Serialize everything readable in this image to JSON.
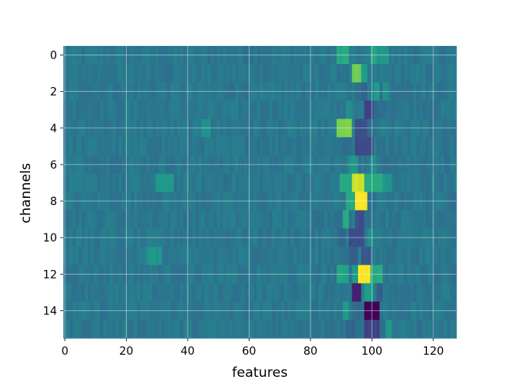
{
  "chart_data": {
    "type": "heatmap",
    "title": "",
    "xlabel": "features",
    "ylabel": "channels",
    "x_range": [
      -0.5,
      127.5
    ],
    "y_range": [
      15.5,
      -0.5
    ],
    "n_features": 128,
    "n_channels": 16,
    "x_ticks": [
      0,
      20,
      40,
      60,
      80,
      100,
      120
    ],
    "x_tick_labels": [
      "0",
      "20",
      "40",
      "60",
      "80",
      "100",
      "120"
    ],
    "y_ticks": [
      0,
      2,
      4,
      6,
      8,
      10,
      12,
      14
    ],
    "y_tick_labels": [
      "0",
      "2",
      "4",
      "6",
      "8",
      "10",
      "12",
      "14"
    ],
    "grid": true,
    "colormap": "viridis",
    "value_range": [
      -1,
      1
    ],
    "background_value": -0.2,
    "background_noise": 0.08,
    "hotspots": [
      {
        "channel": 0,
        "features": [
          89,
          90,
          91,
          92
        ],
        "value": 0.2
      },
      {
        "channel": 0,
        "features": [
          100,
          101
        ],
        "value": 0.15
      },
      {
        "channel": 0,
        "features": [
          102,
          103,
          104,
          105
        ],
        "value": 0.05
      },
      {
        "channel": 1,
        "features": [
          94,
          95,
          96
        ],
        "value": 0.55
      },
      {
        "channel": 1,
        "features": [
          97,
          98
        ],
        "value": 0.1
      },
      {
        "channel": 2,
        "features": [
          97,
          98
        ],
        "value": -0.35
      },
      {
        "channel": 2,
        "features": [
          101,
          102
        ],
        "value": 0.1
      },
      {
        "channel": 2,
        "features": [
          104,
          105
        ],
        "value": 0.0
      },
      {
        "channel": 3,
        "features": [
          92,
          93
        ],
        "value": 0.0
      },
      {
        "channel": 3,
        "features": [
          98,
          99,
          100
        ],
        "value": -0.6
      },
      {
        "channel": 3,
        "features": [
          101,
          102
        ],
        "value": -0.3
      },
      {
        "channel": 4,
        "features": [
          89,
          90,
          91,
          92,
          93
        ],
        "value": 0.6
      },
      {
        "channel": 4,
        "features": [
          95,
          96,
          97,
          98
        ],
        "value": -0.5
      },
      {
        "channel": 4,
        "features": [
          99,
          100
        ],
        "value": -0.3
      },
      {
        "channel": 4,
        "features": [
          45,
          46,
          47
        ],
        "value": 0.0
      },
      {
        "channel": 5,
        "features": [
          95,
          96,
          97,
          98,
          99,
          100
        ],
        "value": -0.55
      },
      {
        "channel": 5,
        "features": [
          91,
          92
        ],
        "value": -0.3
      },
      {
        "channel": 6,
        "features": [
          93,
          94,
          95
        ],
        "value": 0.05
      },
      {
        "channel": 6,
        "features": [
          100,
          101
        ],
        "value": 0.0
      },
      {
        "channel": 7,
        "features": [
          30,
          31,
          32,
          33,
          34,
          35
        ],
        "value": 0.05
      },
      {
        "channel": 7,
        "features": [
          90,
          91,
          92,
          93
        ],
        "value": 0.2
      },
      {
        "channel": 7,
        "features": [
          94,
          95,
          96,
          97
        ],
        "value": 0.85
      },
      {
        "channel": 7,
        "features": [
          98,
          99,
          100,
          101,
          102,
          103
        ],
        "value": 0.2
      },
      {
        "channel": 7,
        "features": [
          104,
          105,
          106
        ],
        "value": 0.05
      },
      {
        "channel": 8,
        "features": [
          92,
          93,
          94
        ],
        "value": 0.2
      },
      {
        "channel": 8,
        "features": [
          95,
          96,
          97,
          98
        ],
        "value": 1.0
      },
      {
        "channel": 8,
        "features": [
          99,
          100,
          101
        ],
        "value": -0.25
      },
      {
        "channel": 9,
        "features": [
          91,
          92
        ],
        "value": 0.2
      },
      {
        "channel": 9,
        "features": [
          95,
          96,
          97
        ],
        "value": -0.5
      },
      {
        "channel": 9,
        "features": [
          100,
          101,
          102
        ],
        "value": -0.2
      },
      {
        "channel": 10,
        "features": [
          90,
          91
        ],
        "value": -0.35
      },
      {
        "channel": 10,
        "features": [
          93,
          94,
          95,
          96,
          97
        ],
        "value": -0.55
      },
      {
        "channel": 10,
        "features": [
          99,
          100
        ],
        "value": 0.0
      },
      {
        "channel": 11,
        "features": [
          27,
          28,
          29,
          30,
          31
        ],
        "value": 0.05
      },
      {
        "channel": 11,
        "features": [
          93,
          94,
          95
        ],
        "value": -0.4
      },
      {
        "channel": 11,
        "features": [
          97,
          98,
          99
        ],
        "value": -0.45
      },
      {
        "channel": 12,
        "features": [
          89,
          90,
          91,
          92
        ],
        "value": 0.15
      },
      {
        "channel": 12,
        "features": [
          94,
          95
        ],
        "value": 0.1
      },
      {
        "channel": 12,
        "features": [
          96,
          97,
          98,
          99
        ],
        "value": 1.0
      },
      {
        "channel": 12,
        "features": [
          100,
          101,
          102,
          103
        ],
        "value": 0.2
      },
      {
        "channel": 13,
        "features": [
          90,
          91,
          92
        ],
        "value": -0.2
      },
      {
        "channel": 13,
        "features": [
          94,
          95,
          96
        ],
        "value": -0.85
      },
      {
        "channel": 13,
        "features": [
          98,
          99,
          100
        ],
        "value": 0.1
      },
      {
        "channel": 13,
        "features": [
          102,
          103
        ],
        "value": -0.4
      },
      {
        "channel": 14,
        "features": [
          91,
          92
        ],
        "value": 0.05
      },
      {
        "channel": 14,
        "features": [
          94,
          95,
          96
        ],
        "value": -0.3
      },
      {
        "channel": 14,
        "features": [
          98,
          99,
          100,
          101,
          102
        ],
        "value": -1.0
      },
      {
        "channel": 15,
        "features": [
          92,
          93,
          94
        ],
        "value": -0.35
      },
      {
        "channel": 15,
        "features": [
          98,
          99,
          100,
          101,
          102
        ],
        "value": -0.6
      },
      {
        "channel": 15,
        "features": [
          105,
          106
        ],
        "value": 0.05
      }
    ]
  }
}
